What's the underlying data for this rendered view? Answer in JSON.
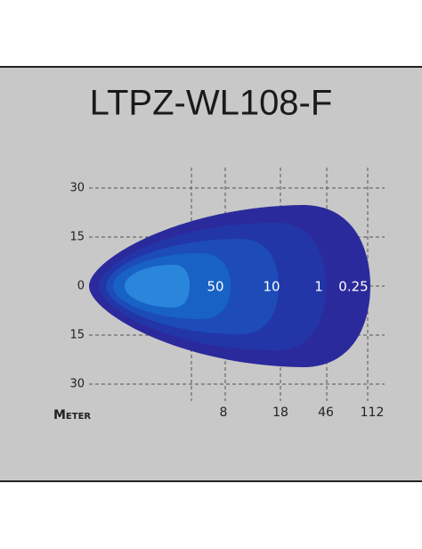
{
  "title": "LTPZ-WL108-F",
  "y_labels": [
    "30",
    "15",
    "0",
    "15",
    "30"
  ],
  "x_axis_label": "Meter",
  "x_labels": [
    "8",
    "18",
    "46",
    "112"
  ],
  "zone_labels": [
    "50",
    "10",
    "1",
    "0.25"
  ]
}
